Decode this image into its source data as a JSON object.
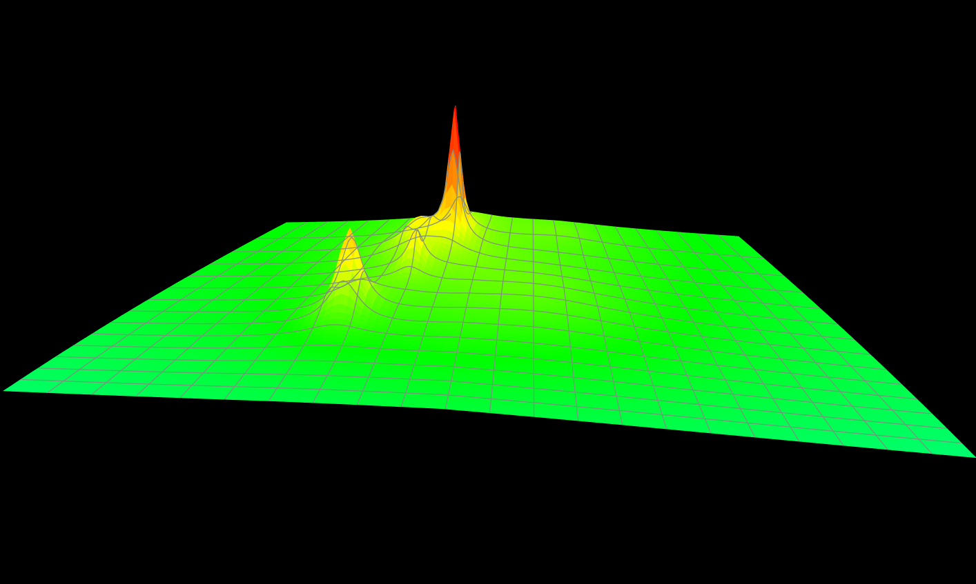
{
  "background_color": "#000000",
  "grid_line_color": "#7f8f7f",
  "chart_data": {
    "type": "surface",
    "title": "",
    "xlabel": "",
    "ylabel": "",
    "zlabel": "",
    "grid": true,
    "legend": "none",
    "colormap": [
      "#00ffff",
      "#00ff00",
      "#ffff00",
      "#ff8000",
      "#ff0000"
    ],
    "x_range": [
      0,
      1
    ],
    "y_range": [
      0,
      1
    ],
    "z_range": [
      0,
      1
    ],
    "baseline": 0.2,
    "peaks": [
      {
        "x": 0.4,
        "y": 0.12,
        "height": 0.9,
        "width": 0.012,
        "depth": 0.03
      },
      {
        "x": 0.34,
        "y": 0.16,
        "height": 0.18,
        "width": 0.04,
        "depth": 0.05
      },
      {
        "x": 0.36,
        "y": 0.3,
        "height": 0.22,
        "width": 0.015,
        "depth": 0.04
      },
      {
        "x": 0.3,
        "y": 0.52,
        "height": 0.38,
        "width": 0.018,
        "depth": 0.05
      },
      {
        "x": 0.6,
        "y": 0.05,
        "height": 0.04,
        "width": 0.08,
        "depth": 0.05
      },
      {
        "x": 0.55,
        "y": 0.4,
        "height": 0.08,
        "width": 0.15,
        "depth": 0.25
      }
    ]
  }
}
